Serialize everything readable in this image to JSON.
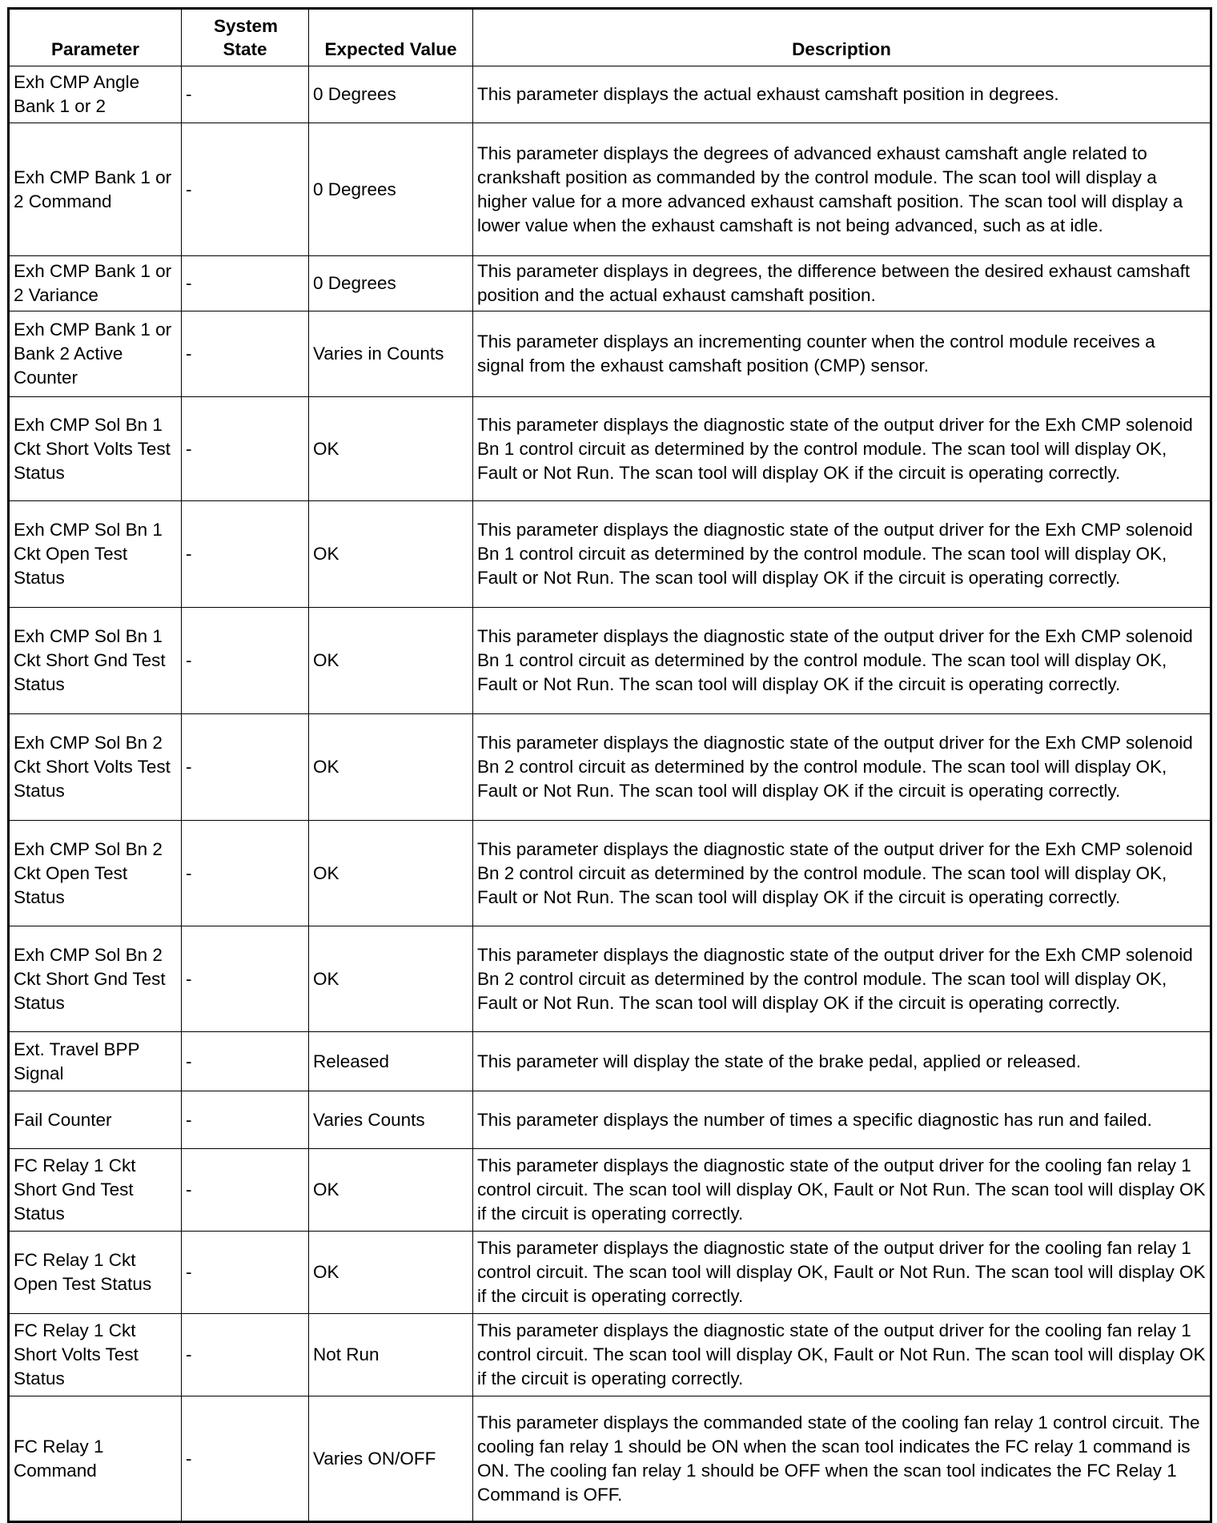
{
  "table": {
    "headers": [
      "Parameter",
      "System State",
      "Expected Value",
      "Description"
    ],
    "rows": [
      {
        "parameter": "Exh CMP Angle Bank 1 or 2",
        "state": "-",
        "expected": "0 Degrees",
        "description": "This parameter displays the actual exhaust camshaft position in degrees."
      },
      {
        "parameter": "Exh CMP Bank 1 or 2 Command",
        "state": "-",
        "expected": "0 Degrees",
        "description": "This parameter displays the degrees of advanced exhaust camshaft angle related to crankshaft position as commanded by the control module. The scan tool will display a higher value for a more advanced exhaust camshaft position. The scan tool will display a lower value when the exhaust camshaft is not being advanced, such as at idle."
      },
      {
        "parameter": "Exh CMP Bank 1 or 2 Variance",
        "state": "-",
        "expected": "0 Degrees",
        "description": "This parameter displays in degrees, the difference between the desired exhaust camshaft position and the actual exhaust camshaft position."
      },
      {
        "parameter": "Exh CMP Bank 1 or Bank 2 Active Counter",
        "state": "-",
        "expected": "Varies in Counts",
        "description": "This parameter displays an incrementing counter when the control module receives a signal from the exhaust camshaft position (CMP) sensor."
      },
      {
        "parameter": "Exh CMP Sol Bn 1 Ckt Short Volts Test Status",
        "state": "-",
        "expected": "OK",
        "description": "This parameter displays the diagnostic state of the output driver for the Exh CMP solenoid Bn 1 control circuit as determined by the control module. The scan tool will display OK, Fault or Not Run. The scan tool will display OK if the circuit is operating correctly."
      },
      {
        "parameter": "Exh CMP Sol Bn 1 Ckt Open Test Status",
        "state": "-",
        "expected": "OK",
        "description": "This parameter displays the diagnostic state of the output driver for the Exh CMP solenoid Bn 1 control circuit as determined by the control module. The scan tool will display OK, Fault or Not Run. The scan tool will display OK if the circuit is operating correctly."
      },
      {
        "parameter": "Exh CMP Sol Bn 1 Ckt Short Gnd Test Status",
        "state": "-",
        "expected": "OK",
        "description": "This parameter displays the diagnostic state of the output driver for the Exh CMP solenoid Bn 1 control circuit as determined by the control module. The scan tool will display OK, Fault or Not Run. The scan tool will display OK if the circuit is operating correctly."
      },
      {
        "parameter": "Exh CMP Sol Bn 2 Ckt Short Volts Test Status",
        "state": "-",
        "expected": "OK",
        "description": "This parameter displays the diagnostic state of the output driver for the Exh CMP solenoid Bn 2 control circuit as determined by the control module. The scan tool will display OK, Fault or Not Run. The scan tool will display OK if the circuit is operating correctly."
      },
      {
        "parameter": "Exh CMP Sol Bn 2 Ckt Open Test Status",
        "state": "-",
        "expected": "OK",
        "description": "This parameter displays the diagnostic state of the output driver for the Exh CMP solenoid Bn 2 control circuit as determined by the control module. The scan tool will display OK, Fault or Not Run. The scan tool will display OK if the circuit is operating correctly."
      },
      {
        "parameter": "Exh CMP Sol Bn 2 Ckt Short Gnd Test Status",
        "state": "-",
        "expected": "OK",
        "description": "This parameter displays the diagnostic state of the output driver for the Exh CMP solenoid Bn 2 control circuit as determined by the control module. The scan tool will display OK, Fault or Not Run. The scan tool will display OK if the circuit is operating correctly."
      },
      {
        "parameter": "Ext. Travel BPP Signal",
        "state": "-",
        "expected": "Released",
        "description": "This parameter will display the state of the brake pedal, applied or released."
      },
      {
        "parameter": "Fail Counter",
        "state": "-",
        "expected": "Varies Counts",
        "description": "This parameter displays the number of times a specific diagnostic has run and failed."
      },
      {
        "parameter": "FC Relay 1 Ckt Short Gnd Test Status",
        "state": "-",
        "expected": "OK",
        "description": "This parameter displays the diagnostic state of the output driver for the cooling fan relay 1 control circuit. The scan tool will display OK, Fault or Not Run. The scan tool will display OK if the circuit is operating correctly."
      },
      {
        "parameter": "FC Relay 1 Ckt Open Test Status",
        "state": "-",
        "expected": "OK",
        "description": "This parameter displays the diagnostic state of the output driver for the cooling fan relay 1 control circuit. The scan tool will display OK, Fault or Not Run. The scan tool will display OK if the circuit is operating correctly."
      },
      {
        "parameter": "FC Relay 1 Ckt Short Volts Test Status",
        "state": "-",
        "expected": "Not Run",
        "description": "This parameter displays the diagnostic state of the output driver for the cooling fan relay 1 control circuit. The scan tool will display OK, Fault or Not Run. The scan tool will display OK if the circuit is operating correctly."
      },
      {
        "parameter": "FC Relay 1 Command",
        "state": "-",
        "expected": "Varies ON/OFF",
        "description": "This parameter displays the commanded state of the cooling fan relay 1 control circuit. The cooling fan relay 1 should be ON when the scan tool indicates the FC relay 1 command is ON. The cooling fan relay 1 should be OFF when the scan tool indicates the FC Relay 1 Command is OFF."
      }
    ]
  }
}
